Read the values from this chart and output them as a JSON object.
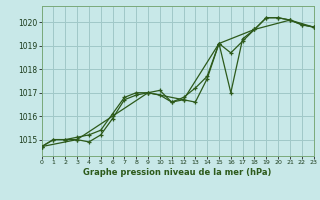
{
  "title": "Graphe pression niveau de la mer (hPa)",
  "background_color": "#c8e8e8",
  "grid_color": "#a0c8c8",
  "line_color": "#2d5a1b",
  "x_min": 0,
  "x_max": 23,
  "y_min": 1014.3,
  "y_max": 1020.7,
  "y_ticks": [
    1015,
    1016,
    1017,
    1018,
    1019,
    1020
  ],
  "x_ticks": [
    0,
    1,
    2,
    3,
    4,
    5,
    6,
    7,
    8,
    9,
    10,
    11,
    12,
    13,
    14,
    15,
    16,
    17,
    18,
    19,
    20,
    21,
    22,
    23
  ],
  "series1": [
    [
      0,
      1014.7
    ],
    [
      1,
      1015.0
    ],
    [
      2,
      1015.0
    ],
    [
      3,
      1015.0
    ],
    [
      4,
      1014.9
    ],
    [
      5,
      1015.2
    ],
    [
      6,
      1015.9
    ],
    [
      7,
      1016.7
    ],
    [
      8,
      1016.9
    ],
    [
      9,
      1017.0
    ],
    [
      10,
      1016.9
    ],
    [
      11,
      1016.6
    ],
    [
      12,
      1016.7
    ],
    [
      13,
      1016.6
    ],
    [
      14,
      1017.6
    ],
    [
      15,
      1019.1
    ],
    [
      16,
      1018.7
    ],
    [
      17,
      1019.2
    ],
    [
      18,
      1019.7
    ],
    [
      19,
      1020.2
    ],
    [
      20,
      1020.2
    ],
    [
      21,
      1020.1
    ],
    [
      22,
      1019.9
    ],
    [
      23,
      1019.8
    ]
  ],
  "series2": [
    [
      0,
      1014.7
    ],
    [
      1,
      1015.0
    ],
    [
      2,
      1015.0
    ],
    [
      3,
      1015.1
    ],
    [
      4,
      1015.2
    ],
    [
      5,
      1015.4
    ],
    [
      6,
      1016.1
    ],
    [
      7,
      1016.8
    ],
    [
      8,
      1017.0
    ],
    [
      9,
      1017.0
    ],
    [
      10,
      1017.1
    ],
    [
      11,
      1016.6
    ],
    [
      12,
      1016.8
    ],
    [
      13,
      1017.2
    ],
    [
      14,
      1017.7
    ],
    [
      15,
      1019.1
    ],
    [
      16,
      1017.0
    ],
    [
      17,
      1019.3
    ],
    [
      18,
      1019.7
    ],
    [
      19,
      1020.2
    ],
    [
      20,
      1020.2
    ],
    [
      21,
      1020.1
    ],
    [
      22,
      1019.9
    ],
    [
      23,
      1019.8
    ]
  ],
  "series3": [
    [
      0,
      1014.7
    ],
    [
      3,
      1015.0
    ],
    [
      6,
      1016.0
    ],
    [
      9,
      1017.0
    ],
    [
      12,
      1016.7
    ],
    [
      15,
      1019.1
    ],
    [
      18,
      1019.7
    ],
    [
      21,
      1020.1
    ],
    [
      23,
      1019.8
    ]
  ]
}
